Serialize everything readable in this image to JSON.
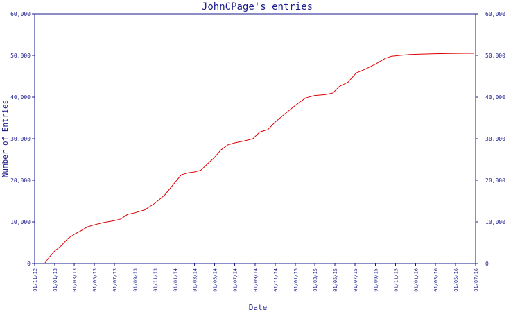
{
  "colors": {
    "axis": "#1a1a8c",
    "series": "#dd0000",
    "background": "#ffffff"
  },
  "chart_data": {
    "type": "line",
    "title": "JohnCPage's entries",
    "xlabel": "Date",
    "ylabel": "Number of Entries",
    "x_tick_labels": [
      "01/11/12",
      "01/01/13",
      "01/03/13",
      "01/05/13",
      "01/07/13",
      "01/09/13",
      "01/11/13",
      "01/01/14",
      "01/03/14",
      "01/05/14",
      "01/07/14",
      "01/09/14",
      "01/11/14",
      "01/01/15",
      "01/03/15",
      "01/05/15",
      "01/07/15",
      "01/09/15",
      "01/11/15",
      "01/01/16",
      "01/03/16",
      "01/05/16",
      "01/07/16"
    ],
    "y_ticks": [
      0,
      10000,
      20000,
      30000,
      40000,
      50000,
      60000
    ],
    "y_tick_labels": [
      "0",
      "10,000",
      "20,000",
      "30,000",
      "40,000",
      "50,000",
      "60,000"
    ],
    "ylim": [
      0,
      60000
    ],
    "xlim": [
      "2012-11-01",
      "2016-07-01"
    ],
    "grid": false,
    "right_axis_mirrors_left": true,
    "series": [
      {
        "color": "#dd0000",
        "points": [
          [
            "2012-12-01",
            0
          ],
          [
            "2012-12-15",
            1500
          ],
          [
            "2013-01-01",
            3000
          ],
          [
            "2013-01-20",
            4200
          ],
          [
            "2013-02-10",
            6000
          ],
          [
            "2013-03-01",
            7000
          ],
          [
            "2013-03-20",
            7800
          ],
          [
            "2013-04-10",
            8800
          ],
          [
            "2013-05-01",
            9300
          ],
          [
            "2013-06-01",
            9900
          ],
          [
            "2013-07-01",
            10300
          ],
          [
            "2013-07-20",
            10700
          ],
          [
            "2013-08-10",
            11800
          ],
          [
            "2013-09-01",
            12200
          ],
          [
            "2013-10-01",
            12900
          ],
          [
            "2013-11-01",
            14500
          ],
          [
            "2013-12-01",
            16500
          ],
          [
            "2014-01-01",
            19500
          ],
          [
            "2014-01-20",
            21300
          ],
          [
            "2014-02-10",
            21800
          ],
          [
            "2014-03-01",
            22000
          ],
          [
            "2014-03-20",
            22400
          ],
          [
            "2014-04-10",
            24000
          ],
          [
            "2014-05-01",
            25500
          ],
          [
            "2014-05-20",
            27300
          ],
          [
            "2014-06-10",
            28500
          ],
          [
            "2014-07-01",
            29000
          ],
          [
            "2014-08-01",
            29500
          ],
          [
            "2014-08-25",
            30000
          ],
          [
            "2014-09-15",
            31600
          ],
          [
            "2014-10-10",
            32200
          ],
          [
            "2014-11-01",
            34000
          ],
          [
            "2014-12-01",
            36000
          ],
          [
            "2015-01-01",
            38000
          ],
          [
            "2015-02-01",
            39800
          ],
          [
            "2015-03-01",
            40400
          ],
          [
            "2015-04-01",
            40600
          ],
          [
            "2015-04-25",
            41000
          ],
          [
            "2015-05-15",
            42600
          ],
          [
            "2015-06-10",
            43600
          ],
          [
            "2015-07-05",
            45800
          ],
          [
            "2015-08-01",
            46700
          ],
          [
            "2015-09-01",
            47900
          ],
          [
            "2015-10-01",
            49300
          ],
          [
            "2015-10-20",
            49800
          ],
          [
            "2015-11-15",
            50000
          ],
          [
            "2015-12-15",
            50200
          ],
          [
            "2016-01-15",
            50300
          ],
          [
            "2016-03-01",
            50400
          ],
          [
            "2016-04-15",
            50450
          ],
          [
            "2016-06-01",
            50500
          ],
          [
            "2016-06-25",
            50500
          ]
        ]
      }
    ]
  }
}
